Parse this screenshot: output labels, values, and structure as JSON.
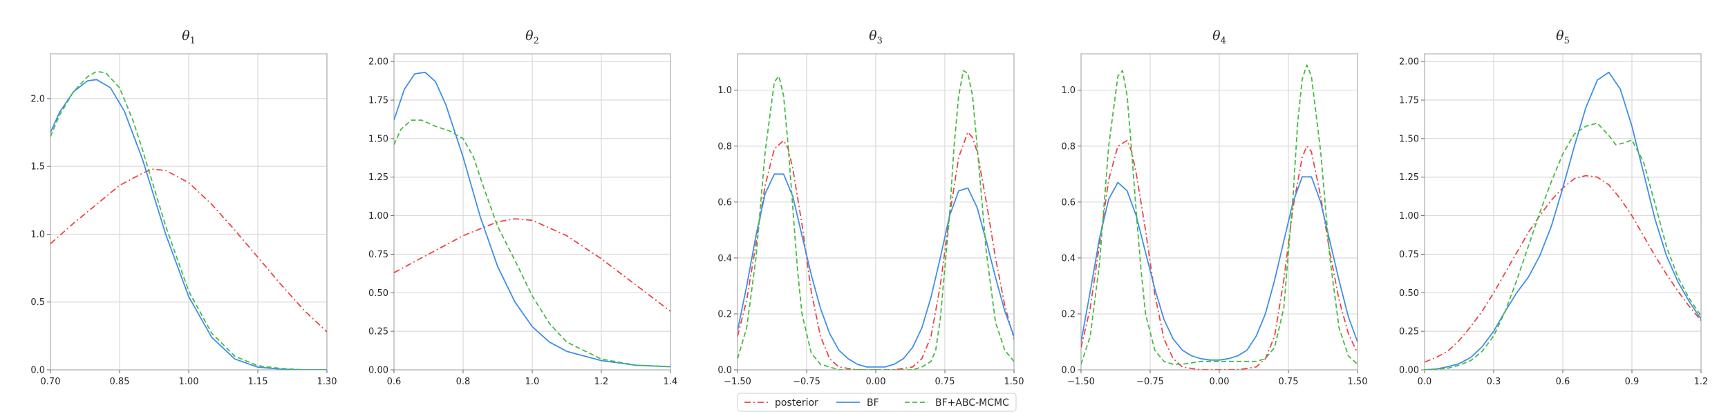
{
  "colors": {
    "posterior": "#ee4444",
    "BF": "#3f8ee8",
    "BF+ABC-MCMC": "#44bb44"
  },
  "legend": [
    {
      "key": "posterior",
      "label": "posterior",
      "dash": "dashdot"
    },
    {
      "key": "BF",
      "label": "BF",
      "dash": "solid"
    },
    {
      "key": "BF+ABC-MCMC",
      "label": "BF+ABC-MCMC",
      "dash": "dashed"
    }
  ],
  "chart_data": [
    {
      "type": "line",
      "title": "θ",
      "title_sub": "1",
      "xlim": [
        0.7,
        1.3
      ],
      "ylim": [
        0,
        2.33
      ],
      "xticks": [
        0.7,
        0.85,
        1.0,
        1.15,
        1.3
      ],
      "xtick_labels": [
        "0.70",
        "0.85",
        "1.00",
        "1.15",
        "1.30"
      ],
      "yticks": [
        0,
        0.5,
        1.0,
        1.5,
        2.0
      ],
      "ytick_labels": [
        "0.0",
        "0.5",
        "1.0",
        "1.5",
        "2.0"
      ],
      "grid": true,
      "series": [
        {
          "name": "posterior",
          "x": [
            0.7,
            0.75,
            0.8,
            0.85,
            0.9,
            0.92,
            0.95,
            1.0,
            1.05,
            1.1,
            1.15,
            1.2,
            1.25,
            1.3
          ],
          "y": [
            0.93,
            1.08,
            1.22,
            1.36,
            1.45,
            1.48,
            1.47,
            1.38,
            1.22,
            1.03,
            0.83,
            0.63,
            0.44,
            0.28
          ]
        },
        {
          "name": "BF",
          "x": [
            0.7,
            0.72,
            0.75,
            0.78,
            0.8,
            0.83,
            0.86,
            0.9,
            0.95,
            1.0,
            1.05,
            1.1,
            1.15,
            1.2,
            1.25,
            1.3
          ],
          "y": [
            1.75,
            1.9,
            2.05,
            2.13,
            2.14,
            2.08,
            1.91,
            1.55,
            1.0,
            0.54,
            0.24,
            0.08,
            0.02,
            0.005,
            0,
            0
          ]
        },
        {
          "name": "BF+ABC-MCMC",
          "x": [
            0.7,
            0.72,
            0.75,
            0.78,
            0.8,
            0.82,
            0.85,
            0.88,
            0.9,
            0.95,
            1.0,
            1.05,
            1.1,
            1.15,
            1.2,
            1.25,
            1.3
          ],
          "y": [
            1.72,
            1.88,
            2.05,
            2.16,
            2.2,
            2.19,
            2.08,
            1.83,
            1.62,
            1.06,
            0.58,
            0.27,
            0.1,
            0.03,
            0.01,
            0,
            0
          ]
        }
      ]
    },
    {
      "type": "line",
      "title": "θ",
      "title_sub": "2",
      "xlim": [
        0.6,
        1.4
      ],
      "ylim": [
        0,
        2.05
      ],
      "xticks": [
        0.6,
        0.8,
        1.0,
        1.2,
        1.4
      ],
      "xtick_labels": [
        "0.6",
        "0.8",
        "1.0",
        "1.2",
        "1.4"
      ],
      "yticks": [
        0,
        0.25,
        0.5,
        0.75,
        1.0,
        1.25,
        1.5,
        1.75,
        2.0
      ],
      "ytick_labels": [
        "0.00",
        "0.25",
        "0.50",
        "0.75",
        "1.00",
        "1.25",
        "1.50",
        "1.75",
        "2.00"
      ],
      "grid": true,
      "series": [
        {
          "name": "posterior",
          "x": [
            0.6,
            0.7,
            0.8,
            0.9,
            0.95,
            1.0,
            1.1,
            1.2,
            1.3,
            1.4
          ],
          "y": [
            0.63,
            0.75,
            0.87,
            0.96,
            0.98,
            0.97,
            0.87,
            0.72,
            0.55,
            0.38
          ]
        },
        {
          "name": "BF",
          "x": [
            0.6,
            0.63,
            0.66,
            0.69,
            0.72,
            0.75,
            0.8,
            0.85,
            0.9,
            0.95,
            1.0,
            1.05,
            1.1,
            1.2,
            1.3,
            1.4
          ],
          "y": [
            1.62,
            1.82,
            1.92,
            1.93,
            1.87,
            1.72,
            1.38,
            0.99,
            0.67,
            0.44,
            0.28,
            0.18,
            0.12,
            0.06,
            0.03,
            0.02
          ]
        },
        {
          "name": "BF+ABC-MCMC",
          "x": [
            0.6,
            0.62,
            0.65,
            0.68,
            0.72,
            0.76,
            0.8,
            0.83,
            0.86,
            0.9,
            0.95,
            1.0,
            1.05,
            1.1,
            1.2,
            1.3,
            1.4
          ],
          "y": [
            1.46,
            1.56,
            1.62,
            1.62,
            1.58,
            1.55,
            1.5,
            1.38,
            1.18,
            0.93,
            0.71,
            0.48,
            0.3,
            0.18,
            0.07,
            0.03,
            0.02
          ]
        }
      ]
    },
    {
      "type": "line",
      "title": "θ",
      "title_sub": "3",
      "xlim": [
        -1.5,
        1.5
      ],
      "ylim": [
        0,
        1.13
      ],
      "xticks": [
        -1.5,
        -0.75,
        0,
        0.75,
        1.5
      ],
      "xtick_labels": [
        "−1.50",
        "−0.75",
        "0.00",
        "0.75",
        "1.50"
      ],
      "yticks": [
        0,
        0.2,
        0.4,
        0.6,
        0.8,
        1.0
      ],
      "ytick_labels": [
        "0.0",
        "0.2",
        "0.4",
        "0.6",
        "0.8",
        "1.0"
      ],
      "grid": true,
      "series": [
        {
          "name": "posterior",
          "x": [
            -1.5,
            -1.4,
            -1.3,
            -1.2,
            -1.1,
            -1.0,
            -0.95,
            -0.9,
            -0.8,
            -0.7,
            -0.6,
            -0.5,
            -0.4,
            -0.2,
            0,
            0.2,
            0.4,
            0.5,
            0.6,
            0.7,
            0.8,
            0.9,
            1.0,
            1.05,
            1.1,
            1.2,
            1.3,
            1.4,
            1.5
          ],
          "y": [
            0.12,
            0.25,
            0.45,
            0.66,
            0.79,
            0.82,
            0.79,
            0.72,
            0.52,
            0.28,
            0.12,
            0.04,
            0.01,
            0,
            0,
            0,
            0.01,
            0.04,
            0.12,
            0.3,
            0.55,
            0.76,
            0.85,
            0.83,
            0.78,
            0.6,
            0.4,
            0.23,
            0.11
          ]
        },
        {
          "name": "BF",
          "x": [
            -1.5,
            -1.4,
            -1.3,
            -1.2,
            -1.1,
            -1.0,
            -0.9,
            -0.8,
            -0.7,
            -0.6,
            -0.5,
            -0.4,
            -0.3,
            -0.2,
            -0.1,
            0,
            0.1,
            0.2,
            0.3,
            0.4,
            0.5,
            0.6,
            0.7,
            0.8,
            0.9,
            1.0,
            1.1,
            1.2,
            1.3,
            1.4,
            1.5
          ],
          "y": [
            0.14,
            0.3,
            0.48,
            0.63,
            0.7,
            0.7,
            0.62,
            0.48,
            0.34,
            0.22,
            0.13,
            0.07,
            0.04,
            0.02,
            0.01,
            0.01,
            0.01,
            0.02,
            0.04,
            0.08,
            0.15,
            0.26,
            0.4,
            0.55,
            0.64,
            0.65,
            0.58,
            0.46,
            0.33,
            0.21,
            0.12
          ]
        },
        {
          "name": "BF+ABC-MCMC",
          "x": [
            -1.5,
            -1.4,
            -1.3,
            -1.2,
            -1.1,
            -1.05,
            -1.0,
            -0.95,
            -0.9,
            -0.85,
            -0.8,
            -0.7,
            -0.6,
            -0.5,
            -0.4,
            0,
            0.4,
            0.5,
            0.6,
            0.65,
            0.7,
            0.8,
            0.85,
            0.9,
            0.95,
            1.0,
            1.05,
            1.1,
            1.2,
            1.3,
            1.4,
            1.5
          ],
          "y": [
            0.04,
            0.15,
            0.4,
            0.78,
            1.03,
            1.05,
            0.98,
            0.8,
            0.58,
            0.36,
            0.2,
            0.06,
            0.02,
            0.01,
            0,
            0,
            0,
            0.01,
            0.03,
            0.07,
            0.18,
            0.55,
            0.8,
            0.98,
            1.07,
            1.06,
            0.98,
            0.8,
            0.42,
            0.17,
            0.07,
            0.03
          ]
        }
      ]
    },
    {
      "type": "line",
      "title": "θ",
      "title_sub": "4",
      "xlim": [
        -1.5,
        1.5
      ],
      "ylim": [
        0,
        1.13
      ],
      "xticks": [
        -1.5,
        -0.75,
        0,
        0.75,
        1.5
      ],
      "xtick_labels": [
        "−1.50",
        "−0.75",
        "0.00",
        "0.75",
        "1.50"
      ],
      "yticks": [
        0,
        0.2,
        0.4,
        0.6,
        0.8,
        1.0
      ],
      "ytick_labels": [
        "0.0",
        "0.2",
        "0.4",
        "0.6",
        "0.8",
        "1.0"
      ],
      "grid": true,
      "series": [
        {
          "name": "posterior",
          "x": [
            -1.5,
            -1.4,
            -1.3,
            -1.2,
            -1.1,
            -1.0,
            -0.95,
            -0.9,
            -0.8,
            -0.7,
            -0.6,
            -0.5,
            -0.4,
            -0.2,
            0,
            0.2,
            0.4,
            0.5,
            0.6,
            0.7,
            0.8,
            0.9,
            0.95,
            1.0,
            1.1,
            1.2,
            1.3,
            1.4,
            1.5
          ],
          "y": [
            0.08,
            0.22,
            0.45,
            0.68,
            0.8,
            0.82,
            0.78,
            0.7,
            0.5,
            0.27,
            0.11,
            0.04,
            0.01,
            0,
            0,
            0,
            0.01,
            0.04,
            0.12,
            0.32,
            0.58,
            0.76,
            0.8,
            0.78,
            0.62,
            0.42,
            0.25,
            0.13,
            0.06
          ]
        },
        {
          "name": "BF",
          "x": [
            -1.5,
            -1.4,
            -1.3,
            -1.2,
            -1.1,
            -1.0,
            -0.9,
            -0.8,
            -0.7,
            -0.6,
            -0.5,
            -0.4,
            -0.3,
            -0.2,
            -0.1,
            0,
            0.1,
            0.2,
            0.3,
            0.4,
            0.5,
            0.6,
            0.7,
            0.8,
            0.9,
            1.0,
            1.1,
            1.2,
            1.3,
            1.4,
            1.5
          ],
          "y": [
            0.1,
            0.28,
            0.47,
            0.61,
            0.67,
            0.64,
            0.55,
            0.42,
            0.29,
            0.18,
            0.11,
            0.07,
            0.05,
            0.04,
            0.035,
            0.035,
            0.04,
            0.05,
            0.07,
            0.12,
            0.2,
            0.32,
            0.46,
            0.6,
            0.69,
            0.69,
            0.6,
            0.46,
            0.32,
            0.19,
            0.1
          ]
        },
        {
          "name": "BF+ABC-MCMC",
          "x": [
            -1.5,
            -1.4,
            -1.3,
            -1.2,
            -1.1,
            -1.05,
            -1.0,
            -0.95,
            -0.9,
            -0.85,
            -0.8,
            -0.7,
            -0.6,
            -0.5,
            -0.4,
            -0.2,
            0,
            0.2,
            0.4,
            0.5,
            0.6,
            0.7,
            0.8,
            0.85,
            0.9,
            0.95,
            1.0,
            1.1,
            1.2,
            1.3,
            1.4,
            1.5
          ],
          "y": [
            0.02,
            0.12,
            0.38,
            0.8,
            1.05,
            1.07,
            0.98,
            0.78,
            0.56,
            0.36,
            0.2,
            0.07,
            0.03,
            0.02,
            0.02,
            0.03,
            0.03,
            0.03,
            0.03,
            0.04,
            0.08,
            0.22,
            0.62,
            0.88,
            1.04,
            1.09,
            1.05,
            0.78,
            0.4,
            0.15,
            0.05,
            0.02
          ]
        }
      ]
    },
    {
      "type": "line",
      "title": "θ",
      "title_sub": "5",
      "xlim": [
        0,
        1.2
      ],
      "ylim": [
        0,
        2.05
      ],
      "xticks": [
        0,
        0.3,
        0.6,
        0.9,
        1.2
      ],
      "xtick_labels": [
        "0.0",
        "0.3",
        "0.6",
        "0.9",
        "1.2"
      ],
      "yticks": [
        0,
        0.25,
        0.5,
        0.75,
        1.0,
        1.25,
        1.5,
        1.75,
        2.0
      ],
      "ytick_labels": [
        "0.00",
        "0.25",
        "0.50",
        "0.75",
        "1.00",
        "1.25",
        "1.50",
        "1.75",
        "2.00"
      ],
      "grid": true,
      "series": [
        {
          "name": "posterior",
          "x": [
            0,
            0.05,
            0.1,
            0.15,
            0.2,
            0.25,
            0.3,
            0.35,
            0.4,
            0.45,
            0.5,
            0.55,
            0.6,
            0.65,
            0.7,
            0.75,
            0.8,
            0.85,
            0.9,
            0.95,
            1.0,
            1.05,
            1.1,
            1.15,
            1.2
          ],
          "y": [
            0.05,
            0.08,
            0.12,
            0.19,
            0.28,
            0.38,
            0.5,
            0.63,
            0.76,
            0.89,
            1.0,
            1.1,
            1.18,
            1.24,
            1.26,
            1.25,
            1.2,
            1.11,
            1.0,
            0.87,
            0.74,
            0.62,
            0.51,
            0.41,
            0.32
          ]
        },
        {
          "name": "BF",
          "x": [
            0,
            0.05,
            0.1,
            0.15,
            0.2,
            0.25,
            0.3,
            0.35,
            0.4,
            0.45,
            0.5,
            0.55,
            0.6,
            0.65,
            0.7,
            0.75,
            0.8,
            0.85,
            0.9,
            0.95,
            1.0,
            1.05,
            1.1,
            1.15,
            1.2
          ],
          "y": [
            0,
            0.005,
            0.02,
            0.04,
            0.08,
            0.15,
            0.25,
            0.38,
            0.5,
            0.6,
            0.74,
            0.93,
            1.18,
            1.45,
            1.7,
            1.88,
            1.93,
            1.82,
            1.58,
            1.28,
            0.98,
            0.74,
            0.57,
            0.44,
            0.33
          ]
        },
        {
          "name": "BF+ABC-MCMC",
          "x": [
            0,
            0.05,
            0.1,
            0.15,
            0.2,
            0.25,
            0.3,
            0.35,
            0.4,
            0.45,
            0.5,
            0.55,
            0.6,
            0.65,
            0.7,
            0.75,
            0.8,
            0.83,
            0.86,
            0.9,
            0.95,
            1.0,
            1.05,
            1.1,
            1.15,
            1.2
          ],
          "y": [
            0,
            0.005,
            0.01,
            0.03,
            0.06,
            0.12,
            0.22,
            0.38,
            0.58,
            0.8,
            1.02,
            1.22,
            1.4,
            1.53,
            1.58,
            1.6,
            1.52,
            1.46,
            1.47,
            1.49,
            1.35,
            1.08,
            0.8,
            0.6,
            0.46,
            0.35
          ]
        }
      ]
    }
  ]
}
